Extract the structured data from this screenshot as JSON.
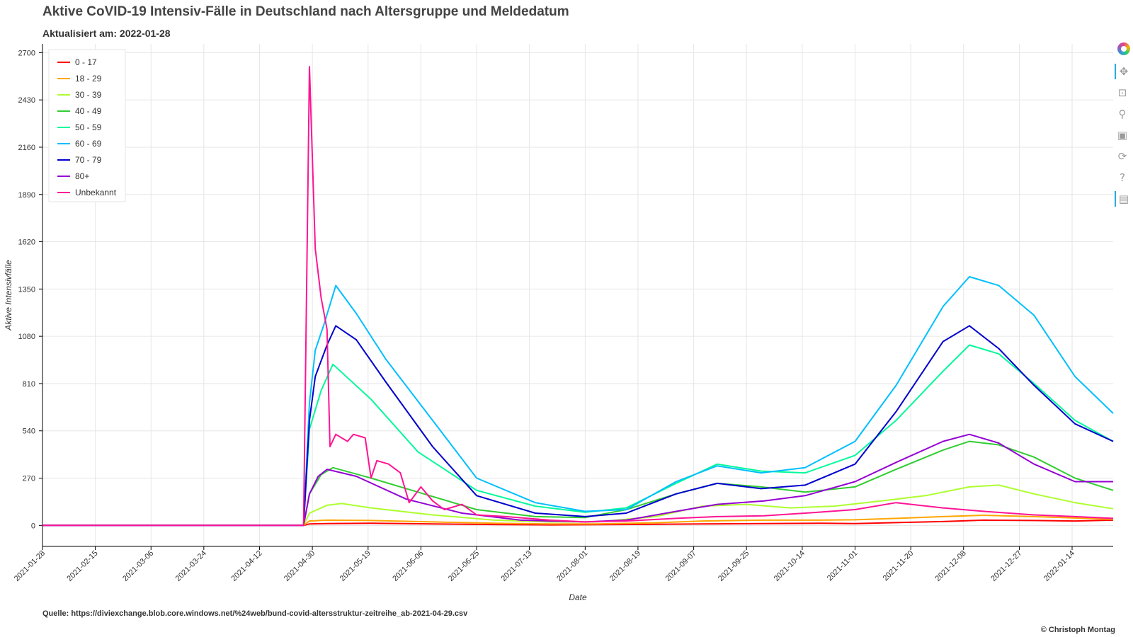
{
  "header": {
    "title": "Aktive CoVID-19 Intensiv-Fälle in Deutschland nach Altersgruppe und Meldedatum",
    "subtitle": "Aktualisiert am: 2022-01-28"
  },
  "footer": {
    "source": "Quelle: https://diviexchange.blob.core.windows.net/%24web/bund-covid-altersstruktur-zeitreihe_ab-2021-04-29.csv",
    "copyright": "© Christoph Montag"
  },
  "toolbar": {
    "tools": [
      {
        "name": "bokeh-logo-icon",
        "glyph": ""
      },
      {
        "name": "pan-tool-icon",
        "glyph": "✥"
      },
      {
        "name": "box-zoom-tool-icon",
        "glyph": "⊡"
      },
      {
        "name": "wheel-zoom-tool-icon",
        "glyph": "⚲"
      },
      {
        "name": "save-tool-icon",
        "glyph": "▣"
      },
      {
        "name": "reset-tool-icon",
        "glyph": "⟳"
      },
      {
        "name": "help-tool-icon",
        "glyph": "?"
      },
      {
        "name": "hover-tool-icon",
        "glyph": "▤"
      }
    ]
  },
  "chart_data": {
    "type": "line",
    "title": "Aktive CoVID-19 Intensiv-Fälle in Deutschland nach Altersgruppe und Meldedatum",
    "subtitle": "Aktualisiert am: 2022-01-28",
    "xlabel": "Date",
    "ylabel": "Aktive Intensivfälle",
    "xlim": [
      "2021-01-28",
      "2022-01-28"
    ],
    "ylim": [
      -120,
      2750
    ],
    "yticks": [
      0,
      270,
      540,
      810,
      1080,
      1350,
      1620,
      1890,
      2160,
      2430,
      2700
    ],
    "xticks": [
      "2021-01-28",
      "2021-02-15",
      "2021-03-06",
      "2021-03-24",
      "2021-04-12",
      "2021-04-30",
      "2021-05-19",
      "2021-06-06",
      "2021-06-25",
      "2021-07-13",
      "2021-08-01",
      "2021-08-19",
      "2021-09-07",
      "2021-09-25",
      "2021-10-14",
      "2021-11-01",
      "2021-11-20",
      "2021-12-08",
      "2021-12-27",
      "2022-01-14"
    ],
    "grid": true,
    "legend_position": "top-left",
    "series": [
      {
        "name": "0 - 17",
        "color": "#ff0000",
        "points": [
          [
            "2021-01-28",
            0
          ],
          [
            "2021-04-27",
            0
          ],
          [
            "2021-04-29",
            8
          ],
          [
            "2021-05-05",
            10
          ],
          [
            "2021-05-20",
            12
          ],
          [
            "2021-06-10",
            8
          ],
          [
            "2021-07-01",
            5
          ],
          [
            "2021-07-20",
            3
          ],
          [
            "2021-08-05",
            4
          ],
          [
            "2021-08-25",
            6
          ],
          [
            "2021-09-10",
            8
          ],
          [
            "2021-10-01",
            10
          ],
          [
            "2021-10-20",
            12
          ],
          [
            "2021-11-01",
            10
          ],
          [
            "2021-11-15",
            16
          ],
          [
            "2021-12-01",
            22
          ],
          [
            "2021-12-15",
            30
          ],
          [
            "2022-01-01",
            28
          ],
          [
            "2022-01-15",
            25
          ],
          [
            "2022-01-28",
            30
          ]
        ]
      },
      {
        "name": "18 - 29",
        "color": "#ffa500",
        "points": [
          [
            "2021-01-28",
            0
          ],
          [
            "2021-04-27",
            0
          ],
          [
            "2021-04-29",
            25
          ],
          [
            "2021-05-05",
            30
          ],
          [
            "2021-05-20",
            28
          ],
          [
            "2021-06-10",
            20
          ],
          [
            "2021-07-01",
            12
          ],
          [
            "2021-07-20",
            8
          ],
          [
            "2021-08-05",
            8
          ],
          [
            "2021-08-25",
            15
          ],
          [
            "2021-09-10",
            25
          ],
          [
            "2021-10-01",
            30
          ],
          [
            "2021-10-20",
            30
          ],
          [
            "2021-11-01",
            32
          ],
          [
            "2021-11-15",
            40
          ],
          [
            "2021-12-01",
            50
          ],
          [
            "2021-12-15",
            58
          ],
          [
            "2022-01-01",
            50
          ],
          [
            "2022-01-15",
            42
          ],
          [
            "2022-01-28",
            35
          ]
        ]
      },
      {
        "name": "30 - 39",
        "color": "#adff2f",
        "points": [
          [
            "2021-01-28",
            0
          ],
          [
            "2021-04-27",
            0
          ],
          [
            "2021-04-29",
            70
          ],
          [
            "2021-05-05",
            115
          ],
          [
            "2021-05-10",
            125
          ],
          [
            "2021-05-20",
            100
          ],
          [
            "2021-06-10",
            60
          ],
          [
            "2021-07-01",
            30
          ],
          [
            "2021-07-20",
            20
          ],
          [
            "2021-08-05",
            20
          ],
          [
            "2021-08-25",
            50
          ],
          [
            "2021-09-10",
            110
          ],
          [
            "2021-09-25",
            120
          ],
          [
            "2021-10-10",
            100
          ],
          [
            "2021-10-25",
            110
          ],
          [
            "2021-11-10",
            140
          ],
          [
            "2021-11-25",
            170
          ],
          [
            "2021-12-10",
            220
          ],
          [
            "2021-12-20",
            230
          ],
          [
            "2022-01-01",
            180
          ],
          [
            "2022-01-15",
            130
          ],
          [
            "2022-01-28",
            95
          ]
        ]
      },
      {
        "name": "40 - 49",
        "color": "#32cd32",
        "points": [
          [
            "2021-01-28",
            0
          ],
          [
            "2021-04-27",
            0
          ],
          [
            "2021-04-29",
            180
          ],
          [
            "2021-05-03",
            290
          ],
          [
            "2021-05-07",
            330
          ],
          [
            "2021-05-20",
            270
          ],
          [
            "2021-06-05",
            190
          ],
          [
            "2021-06-25",
            90
          ],
          [
            "2021-07-15",
            50
          ],
          [
            "2021-08-01",
            45
          ],
          [
            "2021-08-15",
            90
          ],
          [
            "2021-09-01",
            180
          ],
          [
            "2021-09-15",
            240
          ],
          [
            "2021-09-30",
            220
          ],
          [
            "2021-10-15",
            190
          ],
          [
            "2021-11-01",
            220
          ],
          [
            "2021-11-15",
            320
          ],
          [
            "2021-12-01",
            430
          ],
          [
            "2021-12-10",
            480
          ],
          [
            "2021-12-20",
            460
          ],
          [
            "2022-01-01",
            390
          ],
          [
            "2022-01-15",
            270
          ],
          [
            "2022-01-28",
            200
          ]
        ]
      },
      {
        "name": "50 - 59",
        "color": "#00fa9a",
        "points": [
          [
            "2021-01-28",
            0
          ],
          [
            "2021-04-27",
            0
          ],
          [
            "2021-04-29",
            550
          ],
          [
            "2021-05-03",
            770
          ],
          [
            "2021-05-07",
            920
          ],
          [
            "2021-05-20",
            720
          ],
          [
            "2021-06-05",
            420
          ],
          [
            "2021-06-25",
            200
          ],
          [
            "2021-07-15",
            110
          ],
          [
            "2021-08-01",
            75
          ],
          [
            "2021-08-15",
            100
          ],
          [
            "2021-09-01",
            240
          ],
          [
            "2021-09-15",
            350
          ],
          [
            "2021-09-30",
            310
          ],
          [
            "2021-10-15",
            300
          ],
          [
            "2021-11-01",
            400
          ],
          [
            "2021-11-15",
            600
          ],
          [
            "2021-12-01",
            880
          ],
          [
            "2021-12-10",
            1030
          ],
          [
            "2021-12-20",
            980
          ],
          [
            "2022-01-01",
            810
          ],
          [
            "2022-01-15",
            600
          ],
          [
            "2022-01-28",
            480
          ]
        ]
      },
      {
        "name": "60 - 69",
        "color": "#00bfff",
        "points": [
          [
            "2021-01-28",
            0
          ],
          [
            "2021-04-27",
            0
          ],
          [
            "2021-04-29",
            700
          ],
          [
            "2021-05-01",
            1000
          ],
          [
            "2021-05-04",
            1150
          ],
          [
            "2021-05-08",
            1370
          ],
          [
            "2021-05-15",
            1210
          ],
          [
            "2021-05-25",
            950
          ],
          [
            "2021-06-10",
            600
          ],
          [
            "2021-06-25",
            270
          ],
          [
            "2021-07-15",
            130
          ],
          [
            "2021-08-01",
            80
          ],
          [
            "2021-08-15",
            90
          ],
          [
            "2021-09-01",
            250
          ],
          [
            "2021-09-15",
            340
          ],
          [
            "2021-09-30",
            300
          ],
          [
            "2021-10-15",
            330
          ],
          [
            "2021-11-01",
            480
          ],
          [
            "2021-11-15",
            800
          ],
          [
            "2021-12-01",
            1250
          ],
          [
            "2021-12-10",
            1420
          ],
          [
            "2021-12-20",
            1370
          ],
          [
            "2022-01-01",
            1200
          ],
          [
            "2022-01-15",
            850
          ],
          [
            "2022-01-28",
            640
          ]
        ]
      },
      {
        "name": "70 - 79",
        "color": "#0000cd",
        "points": [
          [
            "2021-01-28",
            0
          ],
          [
            "2021-04-27",
            0
          ],
          [
            "2021-04-29",
            600
          ],
          [
            "2021-05-01",
            850
          ],
          [
            "2021-05-05",
            1030
          ],
          [
            "2021-05-08",
            1140
          ],
          [
            "2021-05-15",
            1060
          ],
          [
            "2021-05-25",
            820
          ],
          [
            "2021-06-10",
            450
          ],
          [
            "2021-06-25",
            170
          ],
          [
            "2021-07-15",
            70
          ],
          [
            "2021-08-01",
            50
          ],
          [
            "2021-08-15",
            70
          ],
          [
            "2021-09-01",
            180
          ],
          [
            "2021-09-15",
            240
          ],
          [
            "2021-09-30",
            210
          ],
          [
            "2021-10-15",
            230
          ],
          [
            "2021-11-01",
            350
          ],
          [
            "2021-11-15",
            650
          ],
          [
            "2021-12-01",
            1050
          ],
          [
            "2021-12-10",
            1140
          ],
          [
            "2021-12-20",
            1010
          ],
          [
            "2022-01-01",
            800
          ],
          [
            "2022-01-15",
            580
          ],
          [
            "2022-01-28",
            480
          ]
        ]
      },
      {
        "name": "80+",
        "color": "#9400d3",
        "points": [
          [
            "2021-01-28",
            0
          ],
          [
            "2021-04-27",
            0
          ],
          [
            "2021-04-29",
            180
          ],
          [
            "2021-05-02",
            280
          ],
          [
            "2021-05-05",
            320
          ],
          [
            "2021-05-15",
            280
          ],
          [
            "2021-06-01",
            150
          ],
          [
            "2021-06-20",
            70
          ],
          [
            "2021-07-10",
            30
          ],
          [
            "2021-08-01",
            20
          ],
          [
            "2021-08-15",
            30
          ],
          [
            "2021-09-01",
            80
          ],
          [
            "2021-09-15",
            120
          ],
          [
            "2021-10-01",
            140
          ],
          [
            "2021-10-15",
            170
          ],
          [
            "2021-11-01",
            250
          ],
          [
            "2021-11-15",
            360
          ],
          [
            "2021-12-01",
            480
          ],
          [
            "2021-12-10",
            520
          ],
          [
            "2021-12-20",
            470
          ],
          [
            "2022-01-01",
            350
          ],
          [
            "2022-01-15",
            250
          ],
          [
            "2022-01-28",
            250
          ]
        ]
      },
      {
        "name": "Unbekannt",
        "color": "#ff1493",
        "points": [
          [
            "2021-01-28",
            0
          ],
          [
            "2021-04-27",
            0
          ],
          [
            "2021-04-29",
            2620
          ],
          [
            "2021-05-01",
            1580
          ],
          [
            "2021-05-03",
            1300
          ],
          [
            "2021-05-05",
            1120
          ],
          [
            "2021-05-06",
            450
          ],
          [
            "2021-05-08",
            520
          ],
          [
            "2021-05-12",
            480
          ],
          [
            "2021-05-14",
            520
          ],
          [
            "2021-05-18",
            500
          ],
          [
            "2021-05-20",
            270
          ],
          [
            "2021-05-22",
            370
          ],
          [
            "2021-05-26",
            350
          ],
          [
            "2021-05-30",
            300
          ],
          [
            "2021-06-02",
            130
          ],
          [
            "2021-06-06",
            220
          ],
          [
            "2021-06-10",
            140
          ],
          [
            "2021-06-14",
            90
          ],
          [
            "2021-06-20",
            120
          ],
          [
            "2021-06-25",
            60
          ],
          [
            "2021-07-05",
            50
          ],
          [
            "2021-07-20",
            30
          ],
          [
            "2021-08-01",
            20
          ],
          [
            "2021-08-15",
            25
          ],
          [
            "2021-09-01",
            40
          ],
          [
            "2021-09-15",
            50
          ],
          [
            "2021-10-01",
            55
          ],
          [
            "2021-10-15",
            70
          ],
          [
            "2021-11-01",
            90
          ],
          [
            "2021-11-15",
            130
          ],
          [
            "2021-12-01",
            100
          ],
          [
            "2021-12-15",
            80
          ],
          [
            "2022-01-01",
            60
          ],
          [
            "2022-01-15",
            50
          ],
          [
            "2022-01-28",
            40
          ]
        ]
      }
    ]
  }
}
